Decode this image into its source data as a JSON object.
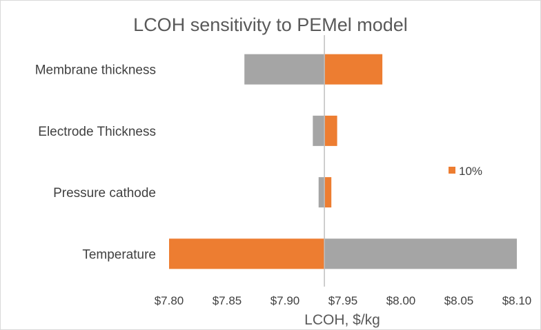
{
  "chart_data": {
    "type": "bar",
    "orientation": "horizontal",
    "subtype": "tornado",
    "title": "LCOH sensitivity to PEMel model",
    "xlabel": "LCOH, $/kg",
    "ylabel": "",
    "categories": [
      "Membrane thickness",
      "Electrode Thickness",
      "Pressure cathode",
      "Temperature"
    ],
    "baseline": 7.934,
    "xlim": [
      7.8,
      8.1
    ],
    "xticks": [
      "$7.80",
      "$7.85",
      "$7.90",
      "$7.95",
      "$8.00",
      "$8.05",
      "$8.10"
    ],
    "xtick_values": [
      7.8,
      7.85,
      7.9,
      7.95,
      8.0,
      8.05,
      8.1
    ],
    "series": [
      {
        "name": "",
        "color": "#a5a5a5",
        "values": [
          7.865,
          7.924,
          7.929,
          8.1
        ]
      },
      {
        "name": "10%",
        "color": "#ed7d31",
        "values": [
          7.984,
          7.945,
          7.94,
          7.8
        ]
      }
    ],
    "legend_position": "right",
    "grid": false
  }
}
